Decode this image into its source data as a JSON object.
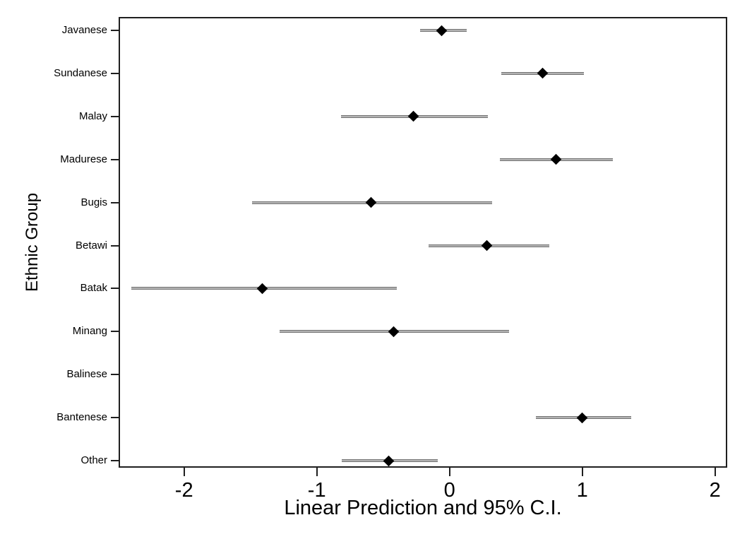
{
  "figure": {
    "background": "#ffffff",
    "frame_color": "#1f1f1f",
    "ci_line_color": "#8c8c8c",
    "marker_color": "#000000",
    "text_color": "#000000"
  },
  "chart_data": {
    "type": "scatter",
    "subtype": "coefficient-plot-with-95ci",
    "orientation": "horizontal",
    "title": "",
    "xlabel": "Linear Prediction and 95% C.I.",
    "ylabel": "Ethnic Group",
    "xlim": [
      -2.49,
      2.09
    ],
    "x_ticks": [
      -2,
      -1,
      0,
      1,
      2
    ],
    "grid": false,
    "legend": false,
    "marker": "diamond",
    "categories": [
      "Javanese",
      "Sundanese",
      "Malay",
      "Madurese",
      "Bugis",
      "Betawi",
      "Batak",
      "Minang",
      "Balinese",
      "Bantenese",
      "Other"
    ],
    "series": [
      {
        "name": "Linear Prediction",
        "points": [
          {
            "category": "Javanese",
            "value": -0.06,
            "ci_low": -0.22,
            "ci_high": 0.13
          },
          {
            "category": "Sundanese",
            "value": 0.7,
            "ci_low": 0.39,
            "ci_high": 1.01
          },
          {
            "category": "Malay",
            "value": -0.27,
            "ci_low": -0.82,
            "ci_high": 0.29
          },
          {
            "category": "Madurese",
            "value": 0.8,
            "ci_low": 0.38,
            "ci_high": 1.23
          },
          {
            "category": "Bugis",
            "value": -0.59,
            "ci_low": -1.49,
            "ci_high": 0.32
          },
          {
            "category": "Betawi",
            "value": 0.28,
            "ci_low": -0.16,
            "ci_high": 0.75
          },
          {
            "category": "Batak",
            "value": -1.41,
            "ci_low": -2.4,
            "ci_high": -0.4
          },
          {
            "category": "Minang",
            "value": -0.42,
            "ci_low": -1.28,
            "ci_high": 0.45
          },
          {
            "category": "Balinese",
            "value": null,
            "ci_low": null,
            "ci_high": null
          },
          {
            "category": "Bantenese",
            "value": 1.0,
            "ci_low": 0.65,
            "ci_high": 1.37
          },
          {
            "category": "Other",
            "value": -0.46,
            "ci_low": -0.81,
            "ci_high": -0.09
          }
        ]
      }
    ]
  }
}
